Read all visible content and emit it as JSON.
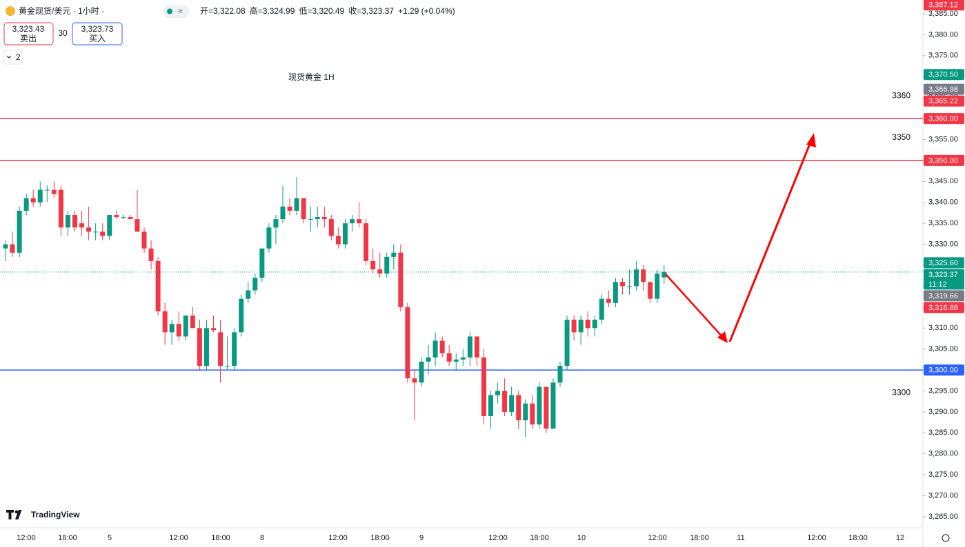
{
  "header": {
    "symbol": "黄金现货/美元 · 1小时 ·",
    "stats": [
      {
        "key": "开=",
        "value": "3,322.08"
      },
      {
        "key": "高=",
        "value": "3,324.99"
      },
      {
        "key": "低=",
        "value": "3,320.49"
      },
      {
        "key": "收=",
        "value": "3,323.37"
      }
    ],
    "change": "+1.29 (+0.04%)",
    "sell": {
      "price": "3,323.43",
      "label": "卖出"
    },
    "spread": "30",
    "buy": {
      "price": "3,323.73",
      "label": "买入"
    },
    "indicators": "2",
    "brand": "TradingView"
  },
  "chart_data": {
    "type": "candlestick",
    "title": "现货黄金 1H",
    "open": [
      3329,
      3330,
      3328,
      3338,
      3341,
      3340,
      3343,
      3343,
      3343,
      3334,
      3337,
      3335,
      3334,
      3333,
      3333,
      3332,
      3337,
      3336.5,
      3336.5,
      3336,
      3333,
      3329,
      3326,
      3314,
      3309,
      3311,
      3308,
      3313,
      3310,
      3301,
      3310,
      3309,
      3301,
      3301,
      3309,
      3317,
      3319,
      3322,
      3329,
      3334,
      3336,
      3339,
      3338,
      3341,
      3336,
      3336,
      3336.5,
      3336,
      3332,
      3330,
      3335,
      3336,
      3335,
      3326,
      3324,
      3323,
      3327,
      3328,
      3315,
      3298,
      3297,
      3302,
      3303,
      3307,
      3304,
      3302,
      3302.5,
      3303,
      3308,
      3303,
      3289,
      3294,
      3295,
      3290,
      3294,
      3288,
      3292,
      3287,
      3296,
      3286,
      3297,
      3301,
      3312,
      3309,
      3312,
      3310,
      3312,
      3317,
      3316,
      3321,
      3320,
      3320,
      3324,
      3321,
      3317,
      3322.08
    ],
    "high": [
      3331,
      3333,
      3339,
      3342,
      3343,
      3345,
      3344,
      3345,
      3344,
      3338,
      3338,
      3338,
      3339,
      3335,
      3335,
      3337,
      3338,
      3337,
      3337,
      3343,
      3334,
      3331,
      3327,
      3316,
      3312,
      3314,
      3313,
      3315,
      3312,
      3312,
      3313,
      3312,
      3308,
      3310,
      3318,
      3321,
      3323,
      3329,
      3335,
      3337,
      3344,
      3341,
      3346,
      3341,
      3339,
      3339,
      3339,
      3337,
      3334,
      3336,
      3337,
      3340,
      3336,
      3329,
      3328,
      3328,
      3330,
      3330,
      3316,
      3300,
      3303,
      3306,
      3309,
      3308,
      3306,
      3304,
      3305,
      3309,
      3308,
      3305,
      3295,
      3297,
      3298,
      3296,
      3295,
      3293,
      3294,
      3297,
      3296,
      3298,
      3302,
      3313,
      3313,
      3313,
      3314,
      3313,
      3318,
      3319,
      3322,
      3322,
      3324,
      3326,
      3325,
      3321,
      3324,
      3324.99
    ],
    "low": [
      3326,
      3327,
      3327,
      3337,
      3339,
      3339,
      3340,
      3341,
      3332,
      3332,
      3333,
      3332,
      3331,
      3331,
      3331,
      3331,
      3336,
      3336,
      3336,
      3333,
      3328,
      3324,
      3313,
      3306,
      3306,
      3307,
      3307,
      3310,
      3300,
      3300,
      3309,
      3297,
      3300,
      3300,
      3308,
      3316,
      3318,
      3321,
      3328,
      3330,
      3335,
      3337,
      3337,
      3335,
      3333,
      3334,
      3334,
      3331,
      3329,
      3329,
      3333,
      3334,
      3325,
      3323,
      3322,
      3322,
      3324,
      3314,
      3297,
      3288,
      3296,
      3299,
      3301,
      3303,
      3301,
      3300,
      3301,
      3301,
      3301,
      3287,
      3286,
      3292,
      3289,
      3289,
      3286,
      3284,
      3286,
      3286,
      3285,
      3286,
      3296,
      3300,
      3307,
      3306,
      3308,
      3308,
      3311,
      3315,
      3315,
      3318,
      3318,
      3319,
      3319,
      3316,
      3316,
      3320.49
    ],
    "close": [
      3330,
      3328,
      3338,
      3341,
      3340,
      3343,
      3343,
      3342,
      3334,
      3337,
      3334,
      3334,
      3333,
      3333,
      3332,
      3337,
      3336.5,
      3336.5,
      3336,
      3333,
      3329,
      3326,
      3314,
      3309,
      3311,
      3308,
      3313,
      3310,
      3301,
      3310,
      3309.5,
      3301,
      3301,
      3309,
      3317,
      3319,
      3322,
      3329,
      3334,
      3336,
      3339,
      3338,
      3341,
      3336,
      3336,
      3336.5,
      3336,
      3332,
      3330,
      3335,
      3336,
      3335,
      3326,
      3324,
      3323,
      3327,
      3328,
      3315,
      3298,
      3297,
      3302,
      3303,
      3307,
      3304,
      3302,
      3302.5,
      3303,
      3308,
      3303,
      3289,
      3294,
      3295,
      3290,
      3294,
      3288,
      3292,
      3287,
      3296,
      3286,
      3297,
      3301,
      3312,
      3309,
      3312,
      3310,
      3312,
      3317,
      3316,
      3321,
      3320,
      3320,
      3324,
      3321,
      3317,
      3323,
      3323.37
    ],
    "up_color": "#089981",
    "down_color": "#f23645",
    "ylim": [
      3265,
      3385
    ],
    "yticks": [
      {
        "value": 3265,
        "label": "3,265.00"
      },
      {
        "value": 3270,
        "label": "3,270.00"
      },
      {
        "value": 3275,
        "label": "3,275.00"
      },
      {
        "value": 3280,
        "label": "3,280.00"
      },
      {
        "value": 3285,
        "label": "3,285.00"
      },
      {
        "value": 3290,
        "label": "3,290.00"
      },
      {
        "value": 3295,
        "label": "3,295.00"
      },
      {
        "value": 3300,
        "label": "3,300.00"
      },
      {
        "value": 3305,
        "label": "3,305.00"
      },
      {
        "value": 3310,
        "label": "3,310.00"
      },
      {
        "value": 3315,
        "label": "3,315.00"
      },
      {
        "value": 3320,
        "label": "3,320.00"
      },
      {
        "value": 3325,
        "label": "3,325.00"
      },
      {
        "value": 3330,
        "label": "3,330.00"
      },
      {
        "value": 3335,
        "label": "3,335.00"
      },
      {
        "value": 3340,
        "label": "3,340.00"
      },
      {
        "value": 3345,
        "label": "3,345.00"
      },
      {
        "value": 3350,
        "label": "3,350.00"
      },
      {
        "value": 3355,
        "label": "3,355.00"
      },
      {
        "value": 3360,
        "label": "3,360.00"
      },
      {
        "value": 3365,
        "label": "3,365.00"
      },
      {
        "value": 3370,
        "label": "3,370.00"
      },
      {
        "value": 3375,
        "label": "3,375.00"
      },
      {
        "value": 3380,
        "label": "3,380.00"
      },
      {
        "value": 3385,
        "label": "3,385.00"
      }
    ],
    "xticks": [
      "12:00",
      "18:00",
      "5",
      "12:00",
      "18:00",
      "8",
      "12:00",
      "18:00",
      "9",
      "12:00",
      "18:00",
      "10",
      "12:00",
      "18:00",
      "11",
      "12:00",
      "18:00",
      "12"
    ],
    "levels": [
      {
        "value": 3360,
        "color": "#f23645"
      },
      {
        "value": 3350,
        "color": "#f23645"
      },
      {
        "value": 3300,
        "color": "#2962ff"
      }
    ],
    "price_tags": [
      {
        "value": 3387.12,
        "label": "3,387.12",
        "color": "#f23645"
      },
      {
        "value": 3370.5,
        "label": "3,370.50",
        "color": "#089981"
      },
      {
        "value": 3366.98,
        "label": "3,366.98",
        "color": "#787b86"
      },
      {
        "value": 3365.22,
        "label": "3,365.22",
        "color": "#f23645"
      },
      {
        "value": 3360,
        "label": "3,360.00",
        "color": "#f23645"
      },
      {
        "value": 3350,
        "label": "3,350.00",
        "color": "#f23645"
      },
      {
        "value": 3325.6,
        "label": "3,325.60",
        "color": "#089981"
      },
      {
        "value": 3323.37,
        "label": "3,323.37",
        "color": "#089981",
        "countdown": "11:12"
      },
      {
        "value": 3319.66,
        "label": "3,319.66",
        "color": "#787b86"
      },
      {
        "value": 3316.88,
        "label": "3,316.88",
        "color": "#f23645"
      },
      {
        "value": 3300,
        "label": "3,300.00",
        "color": "#2962ff"
      }
    ]
  }
}
